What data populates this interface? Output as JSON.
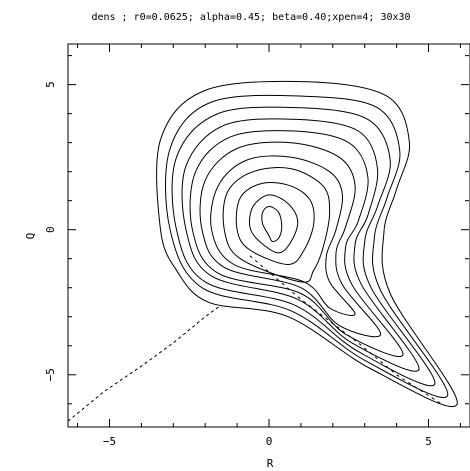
{
  "chart_data": {
    "type": "contour",
    "title": "dens ; r0=0.0625; alpha=0.45; beta=0.40;xpen=4; 30x30",
    "xlabel": "R",
    "ylabel": "Q",
    "xlim": [
      -6.3,
      6.3
    ],
    "ylim": [
      -6.8,
      6.4
    ],
    "x_ticks": [
      {
        "value": -5,
        "label": "−5"
      },
      {
        "value": 0,
        "label": "0"
      },
      {
        "value": 5,
        "label": "5"
      }
    ],
    "y_ticks": [
      {
        "value": 5,
        "label": "5"
      },
      {
        "value": 0,
        "label": "0"
      },
      {
        "value": -5,
        "label": "−5"
      }
    ],
    "line_color": "#000000",
    "boundary_dashed": [
      [
        -6.3,
        -6.6
      ],
      [
        -5.2,
        -5.6
      ],
      [
        -4.0,
        -4.7
      ],
      [
        -3.0,
        -3.9
      ],
      [
        -2.0,
        -3.0
      ],
      [
        -1.5,
        -2.6
      ]
    ],
    "diagonal_dashed": [
      [
        -0.6,
        -0.9
      ],
      [
        1.0,
        -2.4
      ],
      [
        2.8,
        -3.9
      ],
      [
        4.0,
        -5.0
      ],
      [
        5.4,
        -6.0
      ]
    ],
    "contour_levels": [
      {
        "level": 1,
        "points": [
          [
            0.0,
            -0.2
          ],
          [
            -0.2,
            0.2
          ],
          [
            -0.2,
            0.6
          ],
          [
            0.0,
            0.8
          ],
          [
            0.3,
            0.6
          ],
          [
            0.4,
            0.1
          ],
          [
            0.3,
            -0.3
          ],
          [
            0.1,
            -0.4
          ]
        ]
      },
      {
        "level": 2,
        "points": [
          [
            -0.3,
            -0.4
          ],
          [
            -0.6,
            0.1
          ],
          [
            -0.5,
            0.8
          ],
          [
            0.0,
            1.2
          ],
          [
            0.6,
            0.9
          ],
          [
            0.9,
            0.3
          ],
          [
            0.7,
            -0.4
          ],
          [
            0.3,
            -0.8
          ]
        ]
      },
      {
        "level": 3,
        "points": [
          [
            -0.6,
            -0.7
          ],
          [
            -1.0,
            0.0
          ],
          [
            -0.9,
            1.1
          ],
          [
            -0.2,
            1.6
          ],
          [
            0.7,
            1.5
          ],
          [
            1.3,
            1.0
          ],
          [
            1.4,
            0.2
          ],
          [
            1.1,
            -0.7
          ],
          [
            0.6,
            -1.2
          ]
        ]
      },
      {
        "level": 4,
        "points": [
          [
            -0.9,
            -1.0
          ],
          [
            -1.4,
            0.0
          ],
          [
            -1.3,
            1.3
          ],
          [
            -0.5,
            2.0
          ],
          [
            0.7,
            2.1
          ],
          [
            1.7,
            1.5
          ],
          [
            1.9,
            0.6
          ],
          [
            1.7,
            -0.6
          ],
          [
            1.4,
            -1.4
          ],
          [
            1.0,
            -1.8
          ]
        ]
      },
      {
        "level": 5,
        "points": [
          [
            -1.1,
            -1.2
          ],
          [
            -1.8,
            0.0
          ],
          [
            -1.6,
            1.5
          ],
          [
            -0.7,
            2.4
          ],
          [
            0.7,
            2.5
          ],
          [
            1.9,
            2.0
          ],
          [
            2.3,
            1.2
          ],
          [
            2.1,
            0.0
          ],
          [
            1.8,
            -0.9
          ],
          [
            1.9,
            -1.8
          ],
          [
            2.7,
            -2.9
          ],
          [
            1.9,
            -2.7
          ],
          [
            1.1,
            -1.8
          ]
        ]
      },
      {
        "level": 6,
        "points": [
          [
            -1.4,
            -1.3
          ],
          [
            -2.1,
            0.0
          ],
          [
            -2.0,
            1.7
          ],
          [
            -1.0,
            2.8
          ],
          [
            0.7,
            3.0
          ],
          [
            2.2,
            2.5
          ],
          [
            2.7,
            1.5
          ],
          [
            2.4,
            0.1
          ],
          [
            2.1,
            -0.8
          ],
          [
            2.3,
            -1.9
          ],
          [
            3.5,
            -3.6
          ],
          [
            2.2,
            -3.3
          ],
          [
            1.0,
            -2.0
          ]
        ]
      },
      {
        "level": 7,
        "points": [
          [
            -1.6,
            -1.5
          ],
          [
            -2.4,
            0.0
          ],
          [
            -2.3,
            2.0
          ],
          [
            -1.2,
            3.2
          ],
          [
            0.8,
            3.4
          ],
          [
            2.5,
            3.0
          ],
          [
            3.1,
            1.8
          ],
          [
            2.8,
            0.3
          ],
          [
            2.4,
            -0.6
          ],
          [
            2.6,
            -1.9
          ],
          [
            4.2,
            -4.3
          ],
          [
            2.4,
            -3.6
          ],
          [
            1.0,
            -2.2
          ]
        ]
      },
      {
        "level": 8,
        "points": [
          [
            -1.8,
            -1.6
          ],
          [
            -2.6,
            0.0
          ],
          [
            -2.6,
            2.2
          ],
          [
            -1.4,
            3.6
          ],
          [
            0.9,
            3.8
          ],
          [
            2.8,
            3.4
          ],
          [
            3.4,
            2.1
          ],
          [
            3.1,
            0.5
          ],
          [
            2.7,
            -0.5
          ],
          [
            2.9,
            -1.9
          ],
          [
            4.7,
            -4.8
          ],
          [
            2.6,
            -3.9
          ],
          [
            0.9,
            -2.4
          ]
        ]
      },
      {
        "level": 9,
        "points": [
          [
            -2.0,
            -1.8
          ],
          [
            -2.9,
            0.0
          ],
          [
            -2.9,
            2.5
          ],
          [
            -1.6,
            4.0
          ],
          [
            1.0,
            4.2
          ],
          [
            3.1,
            3.8
          ],
          [
            3.8,
            2.4
          ],
          [
            3.4,
            0.8
          ],
          [
            3.0,
            -0.4
          ],
          [
            3.2,
            -2.0
          ],
          [
            5.2,
            -5.3
          ],
          [
            2.8,
            -4.2
          ],
          [
            0.8,
            -2.6
          ]
        ]
      },
      {
        "level": 10,
        "points": [
          [
            -2.1,
            -2.0
          ],
          [
            -3.1,
            0.0
          ],
          [
            -3.1,
            2.8
          ],
          [
            -1.8,
            4.4
          ],
          [
            1.1,
            4.6
          ],
          [
            3.4,
            4.2
          ],
          [
            4.1,
            2.7
          ],
          [
            3.7,
            1.1
          ],
          [
            3.3,
            -0.3
          ],
          [
            3.5,
            -2.1
          ],
          [
            5.6,
            -5.7
          ],
          [
            3.0,
            -4.5
          ],
          [
            0.7,
            -2.8
          ]
        ]
      },
      {
        "level": 11,
        "points": [
          [
            -1.9,
            -2.5
          ],
          [
            -2.9,
            -1.4
          ],
          [
            -3.4,
            0.0
          ],
          [
            -3.4,
            3.1
          ],
          [
            -2.0,
            4.8
          ],
          [
            1.2,
            5.1
          ],
          [
            3.7,
            4.6
          ],
          [
            4.4,
            3.0
          ],
          [
            4.0,
            1.4
          ],
          [
            3.6,
            -0.1
          ],
          [
            3.8,
            -2.2
          ],
          [
            5.9,
            -6.0
          ],
          [
            3.2,
            -4.8
          ],
          [
            0.6,
            -3.0
          ]
        ]
      }
    ]
  }
}
